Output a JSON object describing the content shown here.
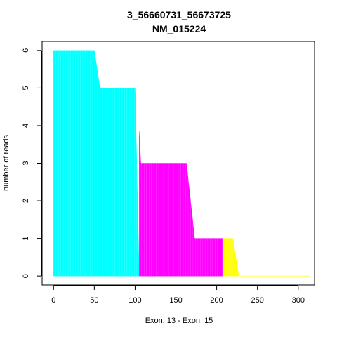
{
  "chart_data": {
    "type": "area",
    "title": "3_56660731_56673725",
    "subtitle": "NM_015224",
    "xlabel": "Exon: 13 - Exon: 15",
    "ylabel": "number of reads",
    "xlim": [
      -14,
      320
    ],
    "ylim": [
      -0.24,
      6.24
    ],
    "xticks": [
      0,
      50,
      100,
      150,
      200,
      250,
      300
    ],
    "yticks": [
      0,
      1,
      2,
      3,
      4,
      5,
      6
    ],
    "grid": false,
    "legend": "none",
    "series": [
      {
        "color": "#00FFFF",
        "x": [
          0,
          50,
          57,
          100,
          105
        ],
        "y": [
          6,
          6,
          5,
          5,
          0
        ]
      },
      {
        "color": "#FF00FF",
        "x": [
          105,
          107,
          163,
          173,
          208
        ],
        "y": [
          3.85,
          3,
          3,
          1,
          1
        ]
      },
      {
        "color": "#FFFF00",
        "x": [
          208,
          215,
          220,
          227,
          315
        ],
        "y": [
          1,
          1,
          1,
          0,
          0
        ]
      }
    ]
  }
}
